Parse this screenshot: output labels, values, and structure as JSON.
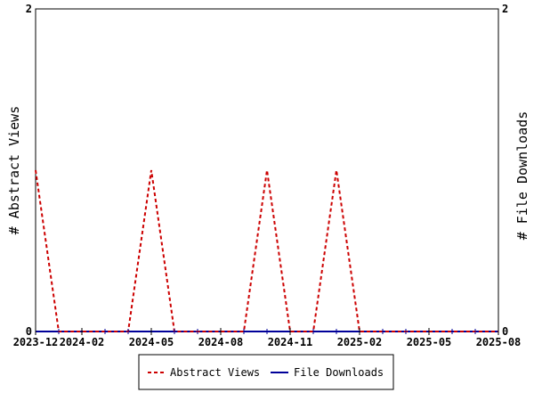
{
  "chart_data": {
    "type": "line",
    "xlabel": "",
    "ylabel_left": "# Abstract Views",
    "ylabel_right": "# File Downloads",
    "x_tick_labels": [
      "2023-12",
      "2024-02",
      "2024-05",
      "2024-08",
      "2024-11",
      "2025-02",
      "2025-05",
      "2025-08"
    ],
    "x_tick_dates": [
      "2023-12",
      "2024-02",
      "2024-05",
      "2024-08",
      "2024-11",
      "2025-02",
      "2025-05",
      "2025-08"
    ],
    "x_range": [
      "2023-12",
      "2025-08"
    ],
    "ylim": [
      0,
      2
    ],
    "y_tick_labels": [
      "0",
      "2"
    ],
    "grid": false,
    "legend_position": "bottom",
    "series": [
      {
        "name": "Abstract Views",
        "color": "#cc0000",
        "dash": "dashed",
        "x": [
          "2023-12",
          "2024-01",
          "2024-02",
          "2024-03",
          "2024-04",
          "2024-05",
          "2024-06",
          "2024-07",
          "2024-08",
          "2024-09",
          "2024-10",
          "2024-11",
          "2024-12",
          "2025-01",
          "2025-02",
          "2025-03",
          "2025-04",
          "2025-05",
          "2025-06",
          "2025-07",
          "2025-08"
        ],
        "y": [
          1,
          0,
          0,
          0,
          0,
          1,
          0,
          0,
          0,
          0,
          1,
          0,
          0,
          1,
          0,
          0,
          0,
          0,
          0,
          0,
          0
        ]
      },
      {
        "name": "File Downloads",
        "color": "#000099",
        "dash": "solid",
        "x": [
          "2023-12",
          "2024-01",
          "2024-02",
          "2024-03",
          "2024-04",
          "2024-05",
          "2024-06",
          "2024-07",
          "2024-08",
          "2024-09",
          "2024-10",
          "2024-11",
          "2024-12",
          "2025-01",
          "2025-02",
          "2025-03",
          "2025-04",
          "2025-05",
          "2025-06",
          "2025-07",
          "2025-08"
        ],
        "y": [
          0,
          0,
          0,
          0,
          0,
          0,
          0,
          0,
          0,
          0,
          0,
          0,
          0,
          0,
          0,
          0,
          0,
          0,
          0,
          0,
          0
        ]
      }
    ]
  }
}
